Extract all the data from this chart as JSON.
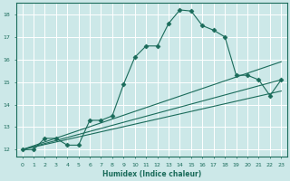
{
  "xlabel": "Humidex (Indice chaleur)",
  "ylabel": "",
  "bg_color": "#cce8e8",
  "grid_color": "#b0d0d0",
  "line_color": "#1a6b5a",
  "xlim": [
    -0.5,
    23.5
  ],
  "ylim": [
    11.7,
    18.5
  ],
  "xticks": [
    0,
    1,
    2,
    3,
    4,
    5,
    6,
    7,
    8,
    9,
    10,
    11,
    12,
    13,
    14,
    15,
    16,
    17,
    18,
    19,
    20,
    21,
    22,
    23
  ],
  "yticks": [
    12,
    13,
    14,
    15,
    16,
    17,
    18
  ],
  "series": [
    {
      "x": [
        0,
        1,
        2,
        3,
        4,
        5,
        6,
        7,
        8,
        9,
        10,
        11,
        12,
        13,
        14,
        15,
        16,
        17,
        18,
        19,
        20,
        21,
        22,
        23
      ],
      "y": [
        12.0,
        12.0,
        12.5,
        12.5,
        12.2,
        12.2,
        13.3,
        13.3,
        13.5,
        14.9,
        16.1,
        16.6,
        16.6,
        17.6,
        18.2,
        18.15,
        17.5,
        17.3,
        17.0,
        15.3,
        15.3,
        15.1,
        14.4,
        15.1
      ],
      "marker": "D",
      "markersize": 2.5
    },
    {
      "x": [
        0,
        23
      ],
      "y": [
        12.0,
        15.9
      ],
      "marker": null
    },
    {
      "x": [
        0,
        23
      ],
      "y": [
        12.0,
        15.1
      ],
      "marker": null
    },
    {
      "x": [
        0,
        23
      ],
      "y": [
        12.0,
        14.6
      ],
      "marker": null
    }
  ]
}
